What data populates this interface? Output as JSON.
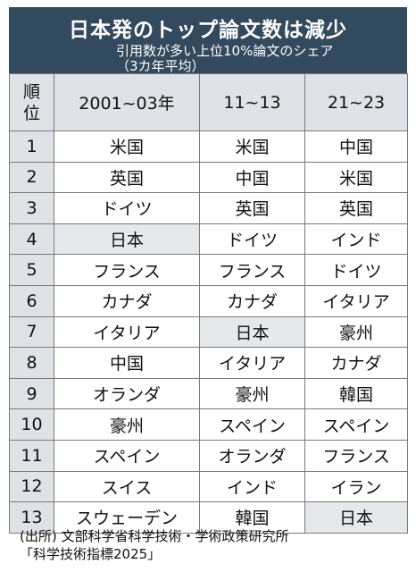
{
  "header": {
    "title": "日本発のトップ論文数は減少",
    "subtitle": "引用数が多い上位10%論文のシェア",
    "period": "（3カ年平均）"
  },
  "table": {
    "corner_label": [
      "順",
      "位"
    ],
    "columns": [
      "2001~03年",
      "11~13",
      "21~23"
    ],
    "rows": [
      {
        "rank": "1",
        "c1": "米国",
        "c2": "米国",
        "c3": "中国"
      },
      {
        "rank": "2",
        "c1": "英国",
        "c2": "中国",
        "c3": "米国"
      },
      {
        "rank": "3",
        "c1": "ドイツ",
        "c2": "英国",
        "c3": "英国"
      },
      {
        "rank": "4",
        "c1": "日本",
        "c2": "ドイツ",
        "c3": "インド"
      },
      {
        "rank": "5",
        "c1": "フランス",
        "c2": "フランス",
        "c3": "ドイツ"
      },
      {
        "rank": "6",
        "c1": "カナダ",
        "c2": "カナダ",
        "c3": "イタリア"
      },
      {
        "rank": "7",
        "c1": "イタリア",
        "c2": "日本",
        "c3": "豪州"
      },
      {
        "rank": "8",
        "c1": "中国",
        "c2": "イタリア",
        "c3": "カナダ"
      },
      {
        "rank": "9",
        "c1": "オランダ",
        "c2": "豪州",
        "c3": "韓国"
      },
      {
        "rank": "10",
        "c1": "豪州",
        "c2": "スペイン",
        "c3": "スペイン"
      },
      {
        "rank": "11",
        "c1": "スペイン",
        "c2": "オランダ",
        "c3": "フランス"
      },
      {
        "rank": "12",
        "c1": "スイス",
        "c2": "インド",
        "c3": "イラン"
      },
      {
        "rank": "13",
        "c1": "スウェーデン",
        "c2": "韓国",
        "c3": "日本"
      }
    ],
    "highlight_value": "日本",
    "colors": {
      "header_bg": "#33495e",
      "rank_bg": "#dfe3e7",
      "japan_bg": "#e6e9ec",
      "border": "#7a7a7a"
    }
  },
  "source": {
    "line1": "(出所) 文部科学省科学技術・学術政策研究所",
    "line2": "「科学技術指標2025」"
  }
}
